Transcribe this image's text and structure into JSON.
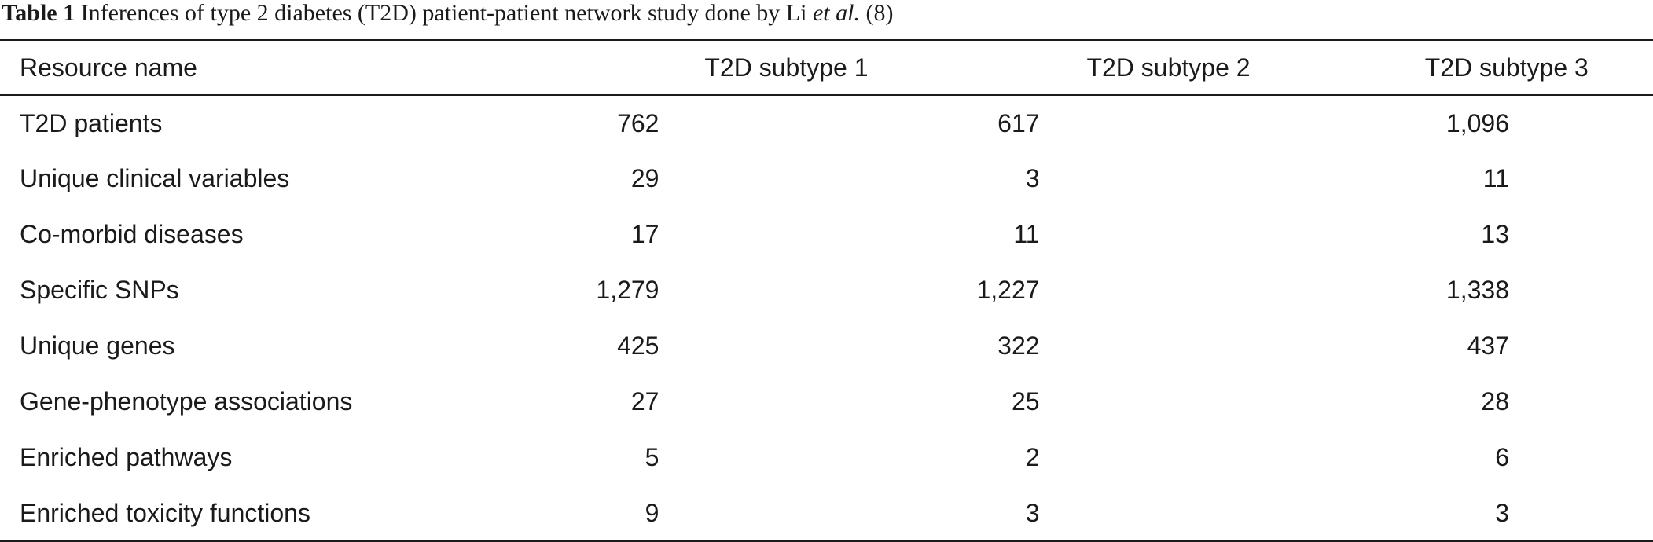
{
  "caption": {
    "label": "Table 1",
    "text_before": " Inferences of type 2 diabetes (T2D) patient-patient network study done by Li ",
    "etal": "et al.",
    "text_after": " (8)"
  },
  "table": {
    "headers": [
      "Resource name",
      "T2D subtype 1",
      "T2D subtype 2",
      "T2D subtype 3"
    ],
    "rows": [
      [
        "T2D patients",
        "762",
        "617",
        "1,096"
      ],
      [
        "Unique clinical variables",
        "29",
        "3",
        "11"
      ],
      [
        "Co-morbid diseases",
        "17",
        "11",
        "13"
      ],
      [
        "Specific SNPs",
        "1,279",
        "1,227",
        "1,338"
      ],
      [
        "Unique genes",
        "425",
        "322",
        "437"
      ],
      [
        "Gene-phenotype associations",
        "27",
        "25",
        "28"
      ],
      [
        "Enriched pathways",
        "5",
        "2",
        "6"
      ],
      [
        "Enriched toxicity functions",
        "9",
        "3",
        "3"
      ]
    ]
  }
}
